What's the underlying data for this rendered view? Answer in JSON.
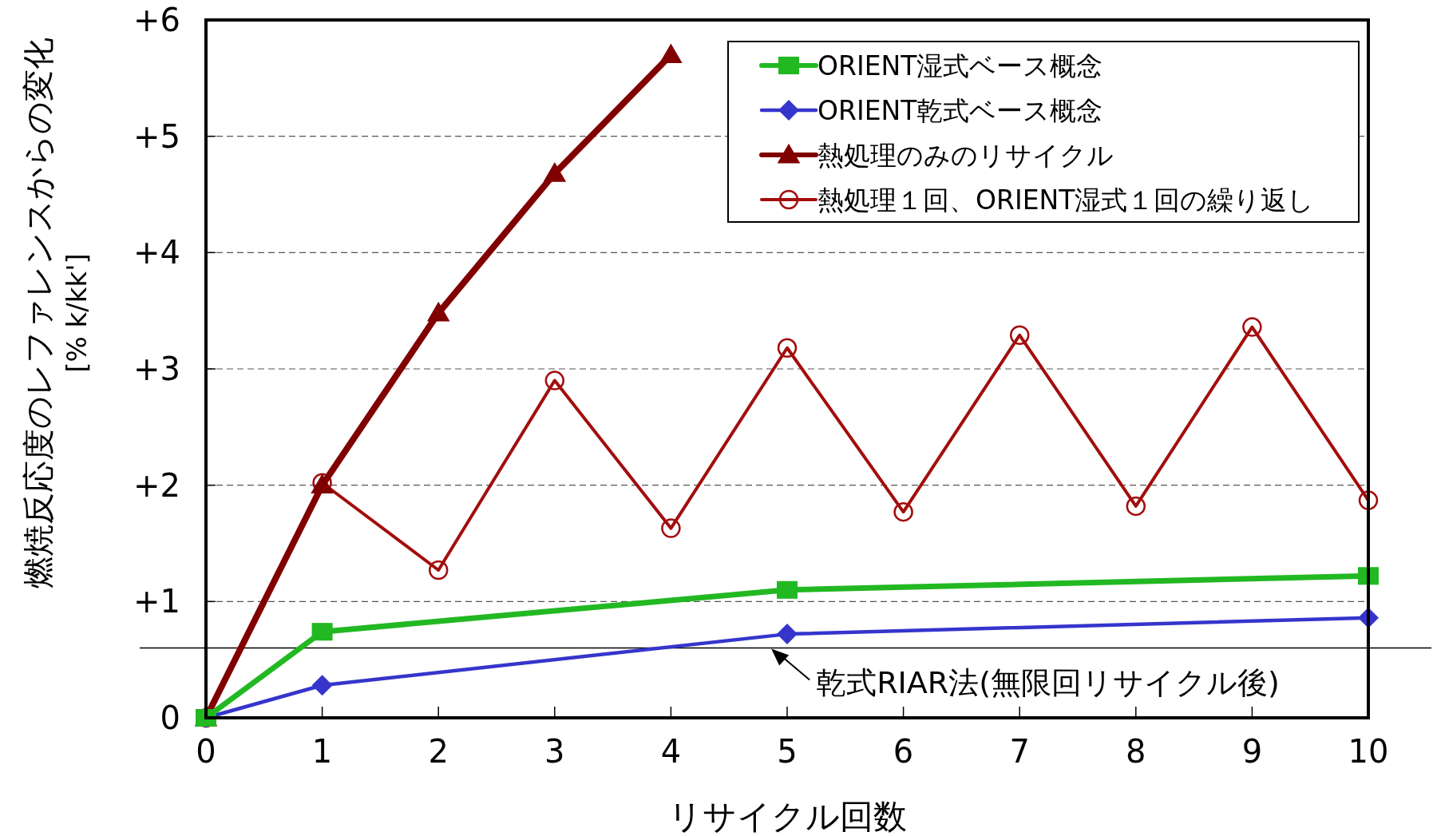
{
  "chart_data": {
    "type": "line",
    "xlabel": "リサイクル回数",
    "ylabel": "燃焼反応度のレファレンスからの変化\n[%   k/kk']",
    "x": [
      0,
      1,
      2,
      3,
      4,
      5,
      6,
      7,
      8,
      9,
      10
    ],
    "series": [
      {
        "name": "ORIENT湿式ベース概念",
        "color": "#22b822",
        "marker": "square",
        "x": [
          0,
          1,
          5,
          10
        ],
        "values": [
          0,
          0.74,
          1.1,
          1.22
        ]
      },
      {
        "name": "ORIENT乾式ベース概念",
        "color": "#3535cc",
        "marker": "diamond",
        "x": [
          0,
          1,
          5,
          10
        ],
        "values": [
          0,
          0.28,
          0.72,
          0.86
        ]
      },
      {
        "name": "熱処理のみのリサイクル",
        "color": "#800000",
        "marker": "triangle",
        "x": [
          0,
          1,
          2,
          3,
          4
        ],
        "values": [
          0,
          2.0,
          3.48,
          4.68,
          5.7
        ]
      },
      {
        "name": "熱処理１回、ORIENT湿式１回の繰り返し",
        "color": "#a30d0d",
        "marker": "circle",
        "values": [
          0,
          2.02,
          1.27,
          2.9,
          1.63,
          3.18,
          1.77,
          3.29,
          1.82,
          3.36,
          1.87
        ]
      }
    ],
    "xlim": [
      0,
      10
    ],
    "xticks": [
      0,
      1,
      2,
      3,
      4,
      5,
      6,
      7,
      8,
      9,
      10
    ],
    "ylim": [
      0,
      6
    ],
    "yticks": [
      0,
      {
        "value": 1,
        "label": "+1"
      },
      {
        "value": 2,
        "label": "+2"
      },
      {
        "value": 3,
        "label": "+3"
      },
      {
        "value": 4,
        "label": "+4"
      },
      {
        "value": 5,
        "label": "+5"
      },
      {
        "value": 6,
        "label": "+6"
      }
    ],
    "ref_lines": [
      {
        "axis": "y",
        "value": 0.6,
        "color": "#000000",
        "line_style": "solid"
      }
    ],
    "annotations": [
      {
        "text": "乾式RIAR法(無限回リサイクル後)",
        "x": 4.85,
        "y": 0.6
      }
    ],
    "grid": "y",
    "legend": "top right",
    "line_style": "solid"
  }
}
